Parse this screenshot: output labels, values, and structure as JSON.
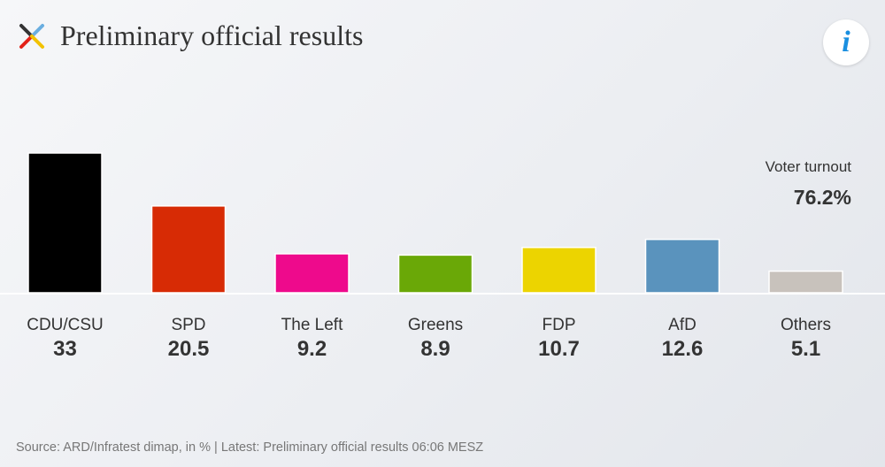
{
  "header": {
    "title": "Preliminary official results",
    "logo_icon": "tagesschau-x-logo",
    "info_icon": "info-icon",
    "info_label": "i"
  },
  "turnout": {
    "label": "Voter turnout",
    "value": "76.2%"
  },
  "chart_data": {
    "type": "bar",
    "categories": [
      "CDU/CSU",
      "SPD",
      "The Left",
      "Greens",
      "FDP",
      "AfD",
      "Others"
    ],
    "values": [
      33,
      20.5,
      9.2,
      8.9,
      10.7,
      12.6,
      5.1
    ],
    "value_labels": [
      "33",
      "20.5",
      "9.2",
      "8.9",
      "10.7",
      "12.6",
      "5.1"
    ],
    "colors": [
      "#000000",
      "#d72b05",
      "#ee0a8c",
      "#6aa807",
      "#ecd400",
      "#5a93bd",
      "#c8c2bc"
    ],
    "title": "",
    "xlabel": "",
    "ylabel": "",
    "ylim": [
      0,
      33
    ],
    "grid": false,
    "legend": "none"
  },
  "footer": {
    "source": "Source: ARD/Infratest dimap, in % | Latest: Preliminary official results 06:06 MESZ"
  }
}
